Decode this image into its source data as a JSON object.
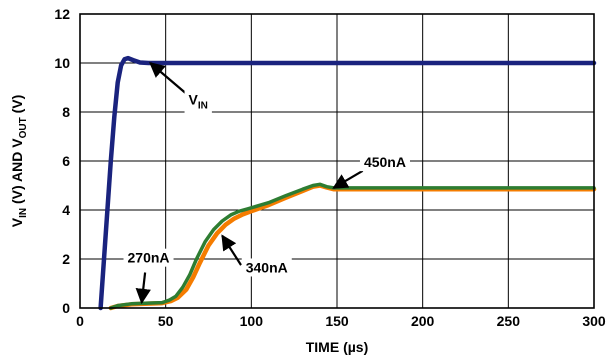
{
  "chart_data": {
    "type": "line",
    "title": "",
    "xlabel": "TIME (µs)",
    "ylabel": "V_IN (V) AND V_OUT (V)",
    "ylabel_parts": [
      "V",
      "IN",
      " (V) AND V",
      "OUT",
      " (V)"
    ],
    "xlim": [
      0,
      300
    ],
    "ylim": [
      0,
      12
    ],
    "xticks": [
      0,
      50,
      100,
      150,
      200,
      250,
      300
    ],
    "yticks": [
      0,
      2,
      4,
      6,
      8,
      10,
      12
    ],
    "grid": true,
    "legend": "none",
    "series": [
      {
        "color": "#1a237e",
        "values": [
          [
            12,
            0
          ],
          [
            14,
            2
          ],
          [
            16,
            4
          ],
          [
            18,
            6
          ],
          [
            20,
            7.8
          ],
          [
            22,
            9.2
          ],
          [
            24,
            9.9
          ],
          [
            26,
            10.15
          ],
          [
            28,
            10.2
          ],
          [
            31,
            10.12
          ],
          [
            35,
            10.02
          ],
          [
            40,
            10
          ],
          [
            60,
            10
          ],
          [
            100,
            10
          ],
          [
            150,
            10
          ],
          [
            200,
            10
          ],
          [
            250,
            10
          ],
          [
            300,
            10
          ]
        ]
      },
      {
        "color": "#f57c00",
        "values": [
          [
            18,
            0
          ],
          [
            22,
            0.08
          ],
          [
            30,
            0.15
          ],
          [
            40,
            0.18
          ],
          [
            48,
            0.2
          ],
          [
            53,
            0.28
          ],
          [
            57,
            0.42
          ],
          [
            62,
            0.75
          ],
          [
            66,
            1.25
          ],
          [
            70,
            1.85
          ],
          [
            75,
            2.55
          ],
          [
            80,
            3.05
          ],
          [
            85,
            3.4
          ],
          [
            90,
            3.65
          ],
          [
            95,
            3.82
          ],
          [
            100,
            3.95
          ],
          [
            110,
            4.2
          ],
          [
            120,
            4.5
          ],
          [
            130,
            4.78
          ],
          [
            136,
            4.95
          ],
          [
            140,
            5
          ],
          [
            144,
            4.92
          ],
          [
            148,
            4.85
          ],
          [
            160,
            4.85
          ],
          [
            200,
            4.85
          ],
          [
            250,
            4.85
          ],
          [
            300,
            4.85
          ]
        ]
      },
      {
        "color": "#2e7d32",
        "values": [
          [
            18,
            0
          ],
          [
            22,
            0.1
          ],
          [
            30,
            0.17
          ],
          [
            40,
            0.2
          ],
          [
            48,
            0.22
          ],
          [
            52,
            0.32
          ],
          [
            56,
            0.48
          ],
          [
            60,
            0.85
          ],
          [
            64,
            1.35
          ],
          [
            68,
            2
          ],
          [
            73,
            2.7
          ],
          [
            78,
            3.2
          ],
          [
            83,
            3.55
          ],
          [
            88,
            3.8
          ],
          [
            93,
            3.95
          ],
          [
            98,
            4.05
          ],
          [
            110,
            4.3
          ],
          [
            120,
            4.58
          ],
          [
            130,
            4.85
          ],
          [
            136,
            5
          ],
          [
            140,
            5.05
          ],
          [
            144,
            4.95
          ],
          [
            148,
            4.9
          ],
          [
            160,
            4.9
          ],
          [
            200,
            4.9
          ],
          [
            250,
            4.9
          ],
          [
            300,
            4.9
          ]
        ]
      }
    ],
    "annotations": [
      {
        "text": "V_IN",
        "parts": [
          "V",
          "IN"
        ],
        "label_at": [
          69,
          8.3
        ],
        "arrow_to": [
          41,
          10
        ],
        "arrow_from": [
          62,
          8.75
        ]
      },
      {
        "text": "450nA",
        "label_at": [
          178,
          5.75
        ],
        "arrow_to": [
          148,
          4.9
        ],
        "arrow_from": [
          165,
          5.6
        ]
      },
      {
        "text": "270nA",
        "label_at": [
          40,
          1.85
        ],
        "arrow_to": [
          36,
          0.22
        ],
        "arrow_from": [
          38,
          1.45
        ]
      },
      {
        "text": "340nA",
        "label_at": [
          109,
          1.45
        ],
        "arrow_to": [
          83,
          2.95
        ],
        "arrow_from": [
          94,
          1.75
        ]
      }
    ]
  }
}
